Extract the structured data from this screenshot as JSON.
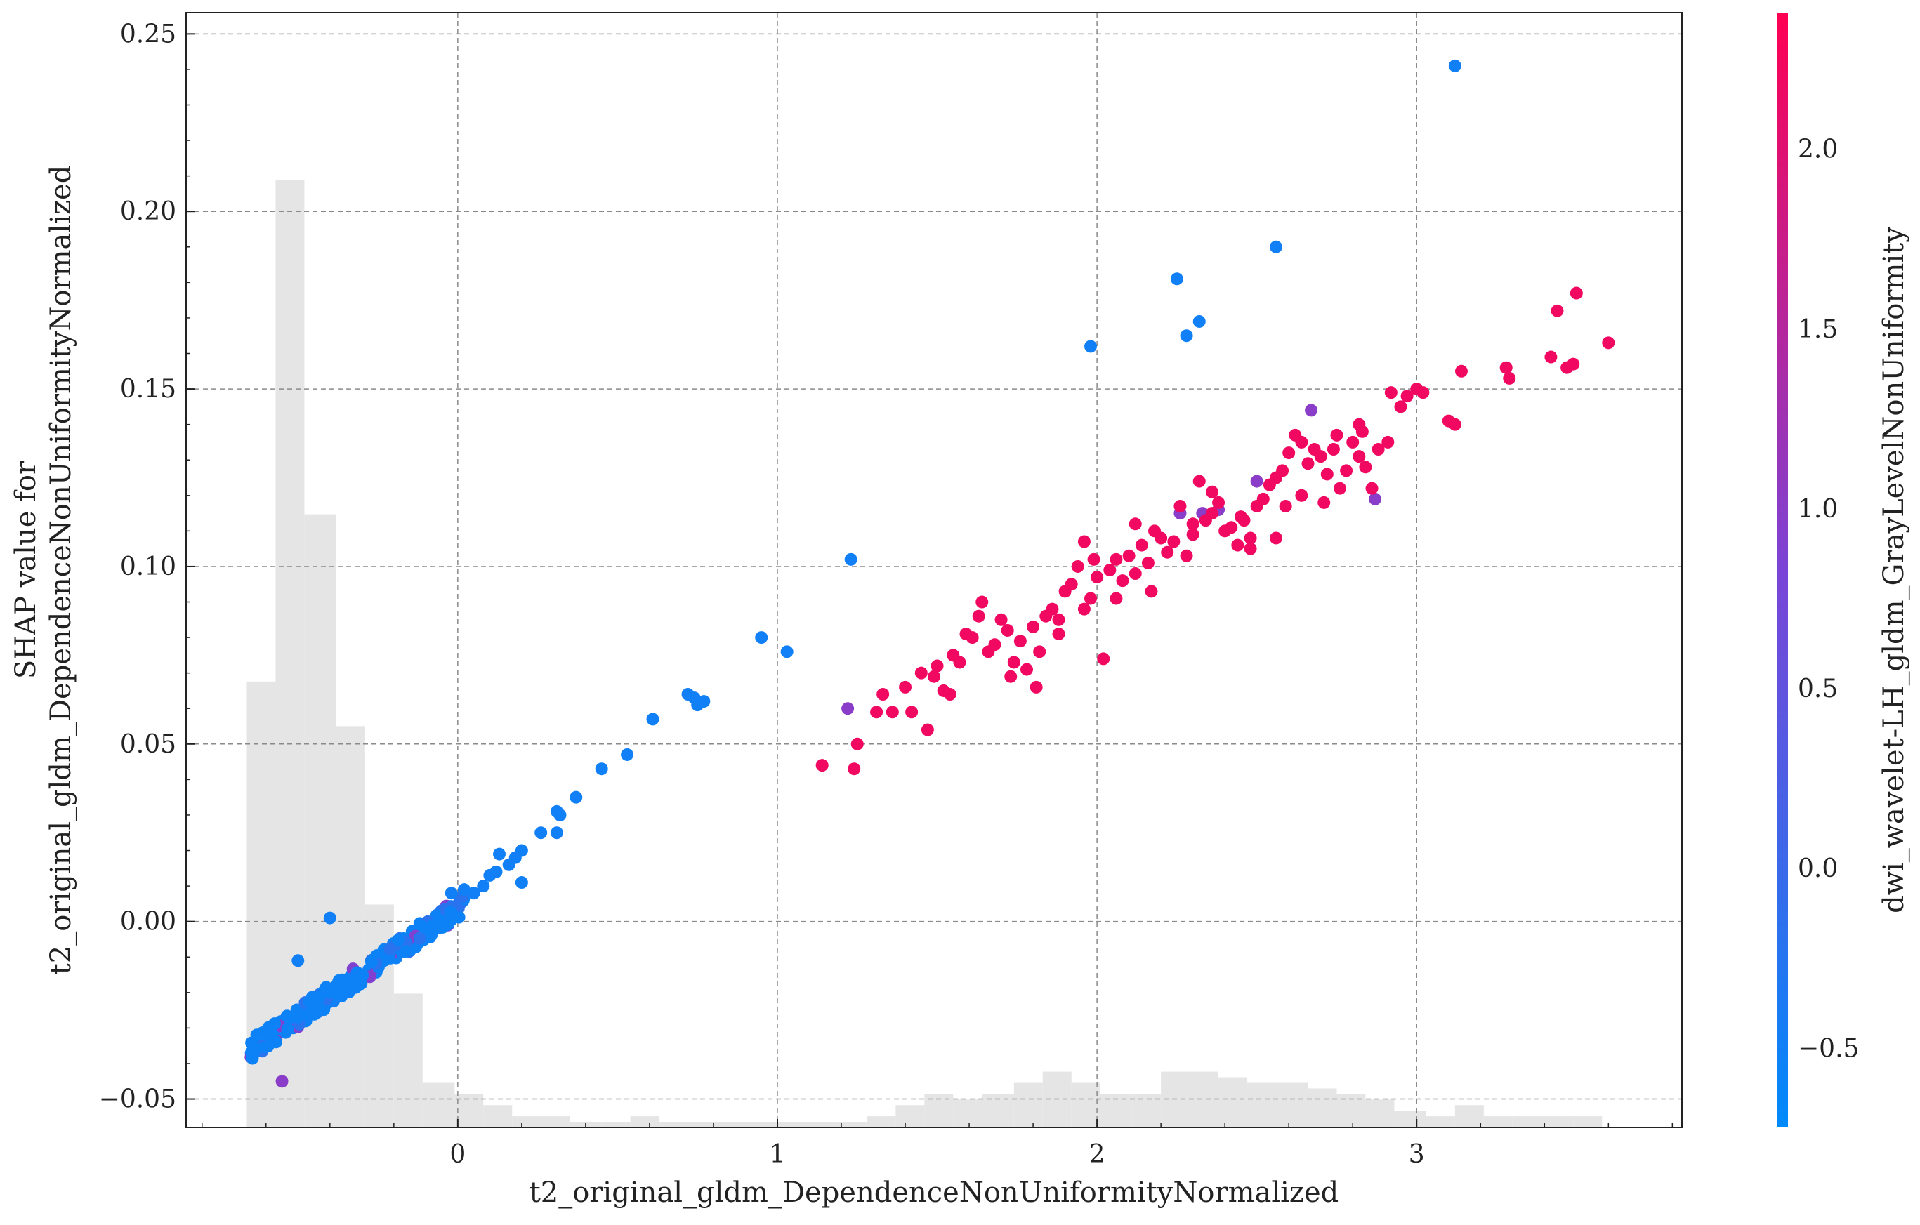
{
  "chart_data": {
    "type": "scatter",
    "title": "",
    "xlabel": "t2_original_gldm_DependenceNonUniformityNormalized",
    "ylabel": [
      "SHAP value for",
      "t2_original_gldm_DependenceNonUniformityNormalized"
    ],
    "colorbar_label": "dwi_wavelet-LH_gldm_GrayLevelNonUniformity",
    "xlim": [
      -0.85,
      3.83
    ],
    "ylim": [
      -0.058,
      0.256
    ],
    "x_ticks": [
      0,
      1,
      2,
      3
    ],
    "x_tick_labels": [
      "0",
      "1",
      "2",
      "3"
    ],
    "y_ticks": [
      -0.05,
      0.0,
      0.05,
      0.1,
      0.15,
      0.2,
      0.25
    ],
    "y_tick_labels": [
      "−0.05",
      "0.00",
      "0.05",
      "0.10",
      "0.15",
      "0.20",
      "0.25"
    ],
    "colorbar_range": [
      -0.72,
      2.38
    ],
    "colorbar_ticks": [
      -0.5,
      0.0,
      0.5,
      1.0,
      1.5,
      2.0
    ],
    "colorbar_tick_labels": [
      "−0.5",
      "0.0",
      "0.5",
      "1.0",
      "1.5",
      "2.0"
    ],
    "colormap": {
      "low": "#008afb",
      "mid": "#7b44d6",
      "high": "#ff0052"
    },
    "grid": true,
    "histogram": {
      "color": "#e5e5e5",
      "bin_edges": [
        -0.66,
        -0.57,
        -0.48,
        -0.38,
        -0.29,
        -0.2,
        -0.11,
        -0.01,
        0.08,
        0.17,
        0.26,
        0.35,
        0.45,
        0.54,
        0.63,
        0.72,
        0.81,
        0.91,
        1.0,
        1.09,
        1.18,
        1.28,
        1.37,
        1.46,
        1.55,
        1.64,
        1.74,
        1.83,
        1.92,
        2.01,
        2.11,
        2.2,
        2.29,
        2.38,
        2.47,
        2.57,
        2.66,
        2.75,
        2.84,
        2.93,
        3.03,
        3.12,
        3.21,
        3.3,
        3.39,
        3.49,
        3.58
      ],
      "heights": [
        0.4,
        0.85,
        0.55,
        0.36,
        0.2,
        0.12,
        0.04,
        0.03,
        0.02,
        0.01,
        0.01,
        0.005,
        0.005,
        0.01,
        0.005,
        0.005,
        0.005,
        0.005,
        0.005,
        0.005,
        0.005,
        0.01,
        0.02,
        0.03,
        0.025,
        0.03,
        0.04,
        0.05,
        0.04,
        0.03,
        0.03,
        0.05,
        0.05,
        0.045,
        0.04,
        0.04,
        0.035,
        0.03,
        0.025,
        0.015,
        0.01,
        0.02,
        0.01,
        0.01,
        0.01,
        0.01
      ]
    },
    "points": [
      [
        3.12,
        0.241,
        -0.5
      ],
      [
        2.56,
        0.19,
        -0.5
      ],
      [
        2.25,
        0.181,
        -0.5
      ],
      [
        2.32,
        0.169,
        -0.5
      ],
      [
        2.28,
        0.165,
        -0.5
      ],
      [
        1.98,
        0.162,
        -0.5
      ],
      [
        1.23,
        0.102,
        -0.5
      ],
      [
        0.95,
        0.08,
        -0.5
      ],
      [
        1.03,
        0.076,
        -0.5
      ],
      [
        0.72,
        0.064,
        -0.5
      ],
      [
        0.74,
        0.063,
        -0.5
      ],
      [
        0.77,
        0.062,
        -0.5
      ],
      [
        0.75,
        0.061,
        -0.5
      ],
      [
        0.61,
        0.057,
        -0.5
      ],
      [
        0.53,
        0.047,
        -0.5
      ],
      [
        0.45,
        0.043,
        -0.5
      ],
      [
        0.37,
        0.035,
        -0.5
      ],
      [
        0.32,
        0.03,
        -0.5
      ],
      [
        0.31,
        0.031,
        -0.5
      ],
      [
        0.26,
        0.025,
        -0.5
      ],
      [
        0.31,
        0.025,
        -0.5
      ],
      [
        0.2,
        0.02,
        -0.5
      ],
      [
        0.13,
        0.019,
        -0.5
      ],
      [
        0.18,
        0.018,
        -0.5
      ],
      [
        0.16,
        0.016,
        -0.5
      ],
      [
        0.12,
        0.014,
        -0.5
      ],
      [
        0.1,
        0.013,
        -0.5
      ],
      [
        0.2,
        0.011,
        -0.5
      ],
      [
        0.08,
        0.01,
        -0.5
      ],
      [
        0.05,
        0.008,
        -0.5
      ],
      [
        0.02,
        0.009,
        -0.5
      ],
      [
        -0.02,
        0.008,
        -0.5
      ],
      [
        -0.4,
        0.001,
        -0.5
      ],
      [
        -0.5,
        -0.011,
        -0.5
      ],
      [
        -0.55,
        -0.045,
        1.0
      ],
      [
        1.22,
        0.06,
        1.0
      ],
      [
        2.5,
        0.124,
        1.0
      ],
      [
        2.67,
        0.144,
        1.0
      ],
      [
        2.87,
        0.119,
        1.0
      ],
      [
        2.26,
        0.115,
        1.0
      ],
      [
        2.33,
        0.115,
        1.0
      ],
      [
        2.38,
        0.116,
        1.0
      ],
      [
        1.14,
        0.044,
        2.2
      ],
      [
        1.24,
        0.043,
        2.2
      ],
      [
        1.25,
        0.05,
        2.2
      ],
      [
        1.31,
        0.059,
        2.2
      ],
      [
        1.33,
        0.064,
        2.2
      ],
      [
        1.36,
        0.059,
        2.2
      ],
      [
        1.4,
        0.066,
        2.2
      ],
      [
        1.42,
        0.059,
        2.2
      ],
      [
        1.45,
        0.07,
        2.2
      ],
      [
        1.47,
        0.054,
        2.2
      ],
      [
        1.49,
        0.069,
        2.2
      ],
      [
        1.5,
        0.072,
        2.2
      ],
      [
        1.52,
        0.065,
        2.2
      ],
      [
        1.54,
        0.064,
        2.2
      ],
      [
        1.55,
        0.075,
        2.2
      ],
      [
        1.57,
        0.073,
        2.2
      ],
      [
        1.59,
        0.081,
        2.2
      ],
      [
        1.61,
        0.08,
        2.2
      ],
      [
        1.63,
        0.086,
        2.2
      ],
      [
        1.64,
        0.09,
        2.2
      ],
      [
        1.66,
        0.076,
        2.2
      ],
      [
        1.68,
        0.078,
        2.2
      ],
      [
        1.7,
        0.085,
        2.2
      ],
      [
        1.72,
        0.082,
        2.2
      ],
      [
        1.74,
        0.073,
        2.2
      ],
      [
        1.76,
        0.079,
        2.2
      ],
      [
        1.78,
        0.071,
        2.2
      ],
      [
        1.8,
        0.083,
        2.2
      ],
      [
        1.82,
        0.076,
        2.2
      ],
      [
        1.84,
        0.086,
        2.2
      ],
      [
        1.86,
        0.088,
        2.2
      ],
      [
        1.88,
        0.081,
        2.2
      ],
      [
        1.9,
        0.093,
        2.2
      ],
      [
        1.92,
        0.095,
        2.2
      ],
      [
        1.94,
        0.1,
        2.2
      ],
      [
        1.96,
        0.107,
        2.2
      ],
      [
        1.98,
        0.091,
        2.2
      ],
      [
        2.0,
        0.097,
        2.2
      ],
      [
        2.02,
        0.074,
        2.2
      ],
      [
        2.04,
        0.099,
        2.2
      ],
      [
        2.06,
        0.102,
        2.2
      ],
      [
        2.08,
        0.096,
        2.2
      ],
      [
        2.1,
        0.103,
        2.2
      ],
      [
        2.12,
        0.098,
        2.2
      ],
      [
        2.14,
        0.106,
        2.2
      ],
      [
        2.16,
        0.101,
        2.2
      ],
      [
        2.18,
        0.11,
        2.2
      ],
      [
        2.2,
        0.108,
        2.2
      ],
      [
        2.22,
        0.104,
        2.2
      ],
      [
        2.24,
        0.107,
        2.2
      ],
      [
        2.26,
        0.117,
        2.2
      ],
      [
        2.28,
        0.103,
        2.2
      ],
      [
        2.3,
        0.112,
        2.2
      ],
      [
        2.32,
        0.124,
        2.2
      ],
      [
        2.34,
        0.113,
        2.2
      ],
      [
        2.36,
        0.115,
        2.2
      ],
      [
        2.38,
        0.118,
        2.2
      ],
      [
        2.4,
        0.11,
        2.2
      ],
      [
        2.42,
        0.111,
        2.2
      ],
      [
        2.44,
        0.106,
        2.2
      ],
      [
        2.46,
        0.113,
        2.2
      ],
      [
        2.48,
        0.108,
        2.2
      ],
      [
        2.5,
        0.117,
        2.2
      ],
      [
        2.52,
        0.119,
        2.2
      ],
      [
        2.54,
        0.123,
        2.2
      ],
      [
        2.56,
        0.125,
        2.2
      ],
      [
        2.58,
        0.127,
        2.2
      ],
      [
        2.6,
        0.132,
        2.2
      ],
      [
        2.62,
        0.137,
        2.2
      ],
      [
        2.64,
        0.135,
        2.2
      ],
      [
        2.66,
        0.129,
        2.2
      ],
      [
        2.68,
        0.133,
        2.2
      ],
      [
        2.7,
        0.131,
        2.2
      ],
      [
        2.72,
        0.126,
        2.2
      ],
      [
        2.74,
        0.133,
        2.2
      ],
      [
        2.76,
        0.122,
        2.2
      ],
      [
        2.78,
        0.127,
        2.2
      ],
      [
        2.8,
        0.135,
        2.2
      ],
      [
        2.82,
        0.131,
        2.2
      ],
      [
        2.84,
        0.128,
        2.2
      ],
      [
        2.86,
        0.122,
        2.2
      ],
      [
        2.88,
        0.133,
        2.2
      ],
      [
        2.92,
        0.149,
        2.2
      ],
      [
        2.95,
        0.145,
        2.2
      ],
      [
        2.97,
        0.148,
        2.2
      ],
      [
        3.0,
        0.15,
        2.2
      ],
      [
        3.02,
        0.149,
        2.2
      ],
      [
        3.1,
        0.141,
        2.2
      ],
      [
        3.12,
        0.14,
        2.2
      ],
      [
        3.14,
        0.155,
        2.2
      ],
      [
        3.28,
        0.156,
        2.2
      ],
      [
        3.29,
        0.153,
        2.2
      ],
      [
        3.42,
        0.159,
        2.2
      ],
      [
        3.44,
        0.172,
        2.2
      ],
      [
        3.47,
        0.156,
        2.2
      ],
      [
        3.49,
        0.157,
        2.2
      ],
      [
        3.5,
        0.177,
        2.2
      ],
      [
        3.6,
        0.163,
        2.2
      ],
      [
        2.3,
        0.109,
        2.2
      ],
      [
        2.45,
        0.114,
        2.2
      ],
      [
        2.12,
        0.112,
        2.2
      ],
      [
        1.99,
        0.102,
        2.2
      ],
      [
        2.06,
        0.091,
        2.2
      ],
      [
        1.96,
        0.088,
        2.2
      ],
      [
        1.81,
        0.066,
        2.2
      ],
      [
        1.73,
        0.069,
        2.2
      ],
      [
        2.56,
        0.108,
        2.2
      ],
      [
        2.64,
        0.12,
        2.2
      ],
      [
        2.82,
        0.14,
        2.2
      ],
      [
        2.91,
        0.135,
        2.2
      ],
      [
        2.48,
        0.105,
        2.2
      ],
      [
        2.36,
        0.121,
        2.2
      ],
      [
        2.71,
        0.118,
        2.2
      ],
      [
        2.59,
        0.117,
        2.2
      ],
      [
        2.17,
        0.093,
        2.2
      ],
      [
        1.88,
        0.085,
        2.2
      ],
      [
        2.75,
        0.137,
        2.2
      ],
      [
        2.83,
        0.138,
        2.2
      ]
    ],
    "dense_band": {
      "x_range": [
        -0.65,
        0.02
      ],
      "y_range": [
        -0.036,
        0.005
      ],
      "count": 260
    }
  }
}
